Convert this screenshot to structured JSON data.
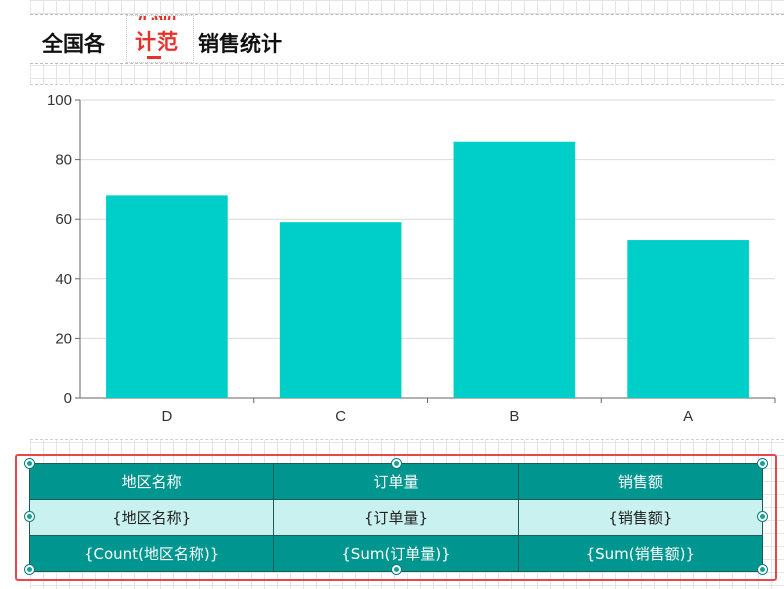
{
  "title": {
    "left": "全国各",
    "right": "销售统计",
    "logo_text": "计范",
    "logo_fragment": "心研"
  },
  "colors": {
    "bar": "#00cec9",
    "table_header": "#009690",
    "table_detail": "#c9f1ef",
    "selection": "#e8474a",
    "logo": "#e8312a"
  },
  "chart_data": {
    "type": "bar",
    "categories": [
      "D",
      "C",
      "B",
      "A"
    ],
    "values": [
      68,
      59,
      86,
      53
    ],
    "ylim": [
      0,
      100
    ],
    "yticks": [
      "100",
      "80",
      "60",
      "40",
      "20",
      "0"
    ],
    "grid": true,
    "title": "",
    "xlabel": "",
    "ylabel": ""
  },
  "table": {
    "header": [
      "地区名称",
      "订单量",
      "销售额"
    ],
    "detail": [
      "{地区名称}",
      "{订单量}",
      "{销售额}"
    ],
    "footer": [
      "{Count(地区名称)}",
      "{Sum(订单量)}",
      "{Sum(销售额)}"
    ]
  }
}
